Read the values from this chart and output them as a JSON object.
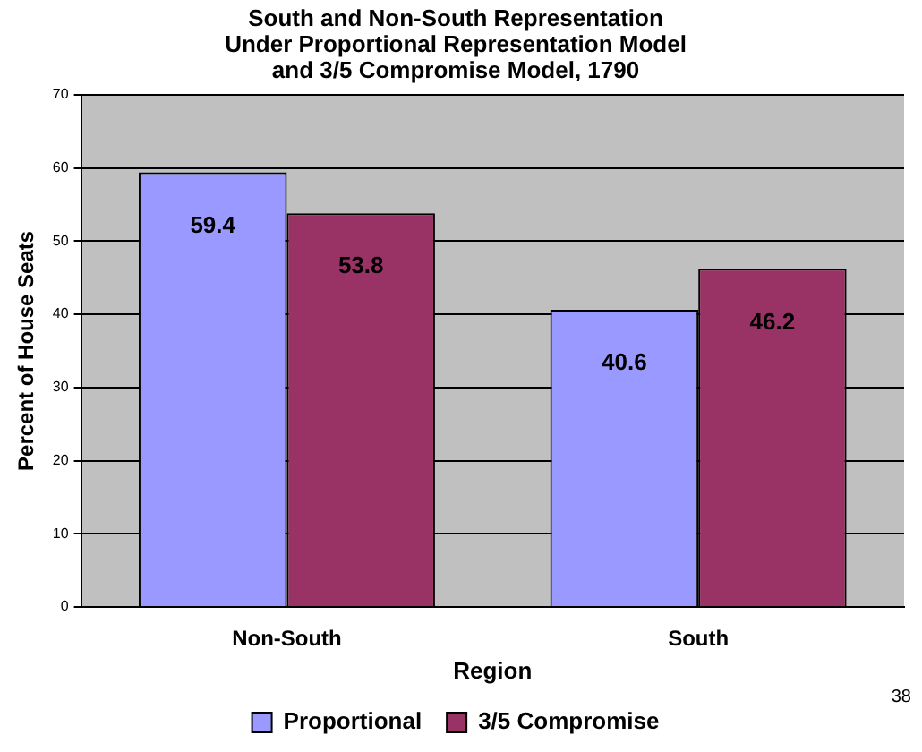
{
  "chart_data": {
    "type": "bar",
    "title": "South and Non-South Representation\nUnder Proportional Representation Model\nand 3/5 Compromise Model, 1790",
    "xlabel": "Region",
    "ylabel": "Percent of House Seats",
    "categories": [
      "Non-South",
      "South"
    ],
    "series": [
      {
        "name": "Proportional",
        "color": "#9999ff",
        "values": [
          59.4,
          40.6
        ]
      },
      {
        "name": "3/5 Compromise",
        "color": "#993366",
        "values": [
          53.8,
          46.2
        ]
      }
    ],
    "ylim": [
      0,
      70
    ],
    "yticks": [
      0,
      10,
      20,
      30,
      40,
      50,
      60,
      70
    ],
    "grid": "y",
    "legend": "bottom",
    "data_labels": true,
    "annotations": [
      "38"
    ]
  }
}
